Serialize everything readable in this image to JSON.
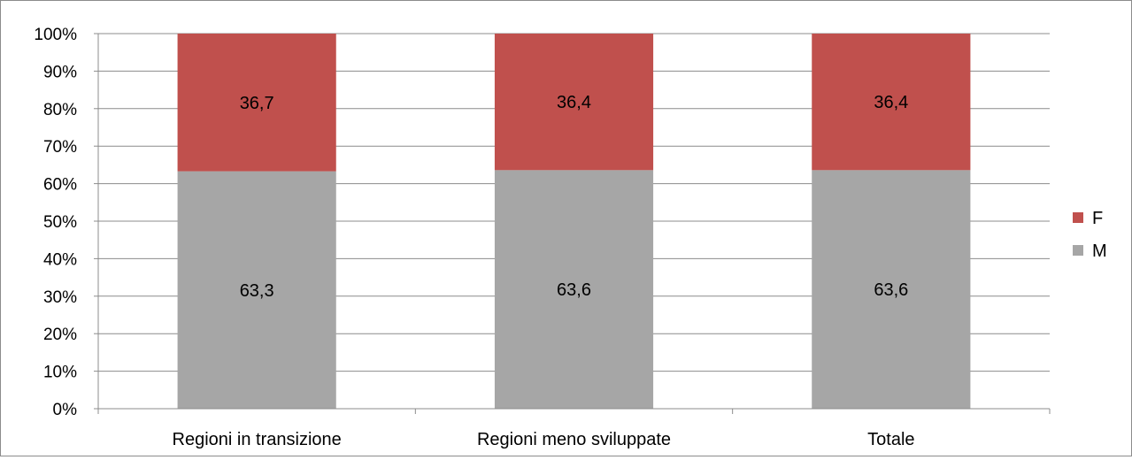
{
  "chart_data": {
    "type": "bar",
    "stacked": true,
    "percent_stacked": true,
    "title": "",
    "xlabel": "",
    "ylabel": "",
    "categories": [
      "Regioni in transizione",
      "Regioni meno sviluppate",
      "Totale"
    ],
    "series": [
      {
        "name": "M",
        "values": [
          63.3,
          63.6,
          63.6
        ],
        "labels": [
          "63,3",
          "63,6",
          "63,6"
        ],
        "color": "#a6a6a6"
      },
      {
        "name": "F",
        "values": [
          36.7,
          36.4,
          36.4
        ],
        "labels": [
          "36,7",
          "36,4",
          "36,4"
        ],
        "color": "#c0504d"
      }
    ],
    "ylim": [
      0,
      100
    ],
    "yticks": [
      "0%",
      "10%",
      "20%",
      "30%",
      "40%",
      "50%",
      "60%",
      "70%",
      "80%",
      "90%",
      "100%"
    ],
    "grid": true,
    "legend_position": "right",
    "legend_order": [
      "F",
      "M"
    ]
  }
}
